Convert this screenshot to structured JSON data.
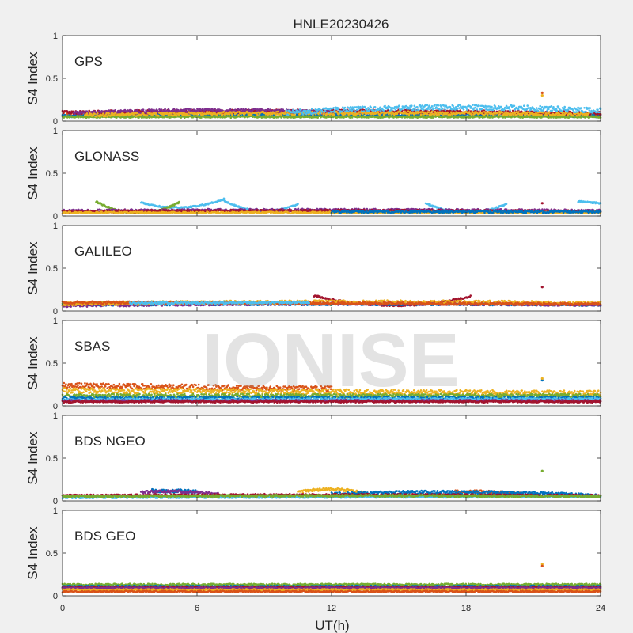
{
  "chart_data": {
    "type": "scatter",
    "title": "HNLE20230426",
    "xlabel": "UT(h)",
    "ylabel": "S4 Index",
    "xlim": [
      0,
      24
    ],
    "ylim": [
      0,
      1
    ],
    "x_ticks": [
      "0",
      "6",
      "12",
      "18",
      "24"
    ],
    "y_ticks": [
      "0",
      "0.5",
      "1"
    ],
    "watermark": "IONISE",
    "series_colors": [
      "#0072BD",
      "#D95319",
      "#EDB120",
      "#7E2F8E",
      "#77AC30",
      "#4DBEEE",
      "#A2142F"
    ],
    "panels": [
      {
        "label": "GPS",
        "tracks": [
          {
            "color": "#D95319",
            "start": 0.0,
            "end": 24.0,
            "y0": 0.08,
            "y1": 0.07,
            "bump": 0.02,
            "spread": 0.02
          },
          {
            "color": "#0072BD",
            "start": 0.0,
            "end": 24.0,
            "y0": 0.06,
            "y1": 0.06,
            "bump": 0.01,
            "spread": 0.015
          },
          {
            "color": "#77AC30",
            "start": 0.0,
            "end": 24.0,
            "y0": 0.05,
            "y1": 0.05,
            "bump": 0.0,
            "spread": 0.01
          },
          {
            "color": "#A2142F",
            "start": 0.0,
            "end": 24.0,
            "y0": 0.1,
            "y1": 0.09,
            "bump": 0.02,
            "spread": 0.02
          },
          {
            "color": "#7E2F8E",
            "start": 0.5,
            "end": 12.0,
            "y0": 0.09,
            "y1": 0.1,
            "bump": 0.03,
            "spread": 0.02
          },
          {
            "color": "#EDB120",
            "start": 1.0,
            "end": 23.5,
            "y0": 0.07,
            "y1": 0.08,
            "bump": 0.02,
            "spread": 0.02
          },
          {
            "color": "#4DBEEE",
            "start": 10.0,
            "end": 24.0,
            "y0": 0.1,
            "y1": 0.12,
            "bump": 0.05,
            "spread": 0.03
          }
        ],
        "outliers": [
          {
            "x": 21.4,
            "y": 0.3,
            "color": "#EDB120"
          },
          {
            "x": 21.4,
            "y": 0.33,
            "color": "#D95319"
          }
        ]
      },
      {
        "label": "GLONASS",
        "tracks": [
          {
            "color": "#4DBEEE",
            "start": 3.5,
            "end": 7.2,
            "y0": 0.16,
            "y1": 0.2,
            "bump": -0.08,
            "spread": 0.008
          },
          {
            "color": "#4DBEEE",
            "start": 7.2,
            "end": 10.5,
            "y0": 0.18,
            "y1": 0.14,
            "bump": -0.1,
            "spread": 0.008
          },
          {
            "color": "#4DBEEE",
            "start": 16.2,
            "end": 19.8,
            "y0": 0.15,
            "y1": 0.14,
            "bump": -0.1,
            "spread": 0.008
          },
          {
            "color": "#77AC30",
            "start": 1.5,
            "end": 5.2,
            "y0": 0.17,
            "y1": 0.16,
            "bump": -0.13,
            "spread": 0.008
          },
          {
            "color": "#7E2F8E",
            "start": 0.0,
            "end": 24.0,
            "y0": 0.06,
            "y1": 0.06,
            "bump": 0.01,
            "spread": 0.015
          },
          {
            "color": "#A2142F",
            "start": 0.0,
            "end": 24.0,
            "y0": 0.05,
            "y1": 0.05,
            "bump": 0.01,
            "spread": 0.015
          },
          {
            "color": "#EDB120",
            "start": 0.0,
            "end": 24.0,
            "y0": 0.04,
            "y1": 0.04,
            "bump": 0.0,
            "spread": 0.01
          },
          {
            "color": "#0072BD",
            "start": 12.0,
            "end": 24.0,
            "y0": 0.05,
            "y1": 0.05,
            "bump": 0.0,
            "spread": 0.012
          },
          {
            "color": "#4DBEEE",
            "start": 23.0,
            "end": 24.0,
            "y0": 0.17,
            "y1": 0.15,
            "bump": 0.0,
            "spread": 0.008
          }
        ],
        "outliers": [
          {
            "x": 21.4,
            "y": 0.15,
            "color": "#A2142F"
          }
        ]
      },
      {
        "label": "GALILEO",
        "tracks": [
          {
            "color": "#A2142F",
            "start": 11.2,
            "end": 18.2,
            "y0": 0.18,
            "y1": 0.17,
            "bump": -0.11,
            "spread": 0.01
          },
          {
            "color": "#77AC30",
            "start": 0.0,
            "end": 12.0,
            "y0": 0.08,
            "y1": 0.08,
            "bump": 0.02,
            "spread": 0.015
          },
          {
            "color": "#0072BD",
            "start": 0.0,
            "end": 24.0,
            "y0": 0.07,
            "y1": 0.07,
            "bump": 0.01,
            "spread": 0.012
          },
          {
            "color": "#7E2F8E",
            "start": 0.0,
            "end": 24.0,
            "y0": 0.06,
            "y1": 0.07,
            "bump": 0.02,
            "spread": 0.015
          },
          {
            "color": "#EDB120",
            "start": 0.0,
            "end": 24.0,
            "y0": 0.08,
            "y1": 0.09,
            "bump": 0.02,
            "spread": 0.02
          },
          {
            "color": "#D95319",
            "start": 0.0,
            "end": 24.0,
            "y0": 0.1,
            "y1": 0.08,
            "bump": 0.0,
            "spread": 0.015
          },
          {
            "color": "#4DBEEE",
            "start": 3.0,
            "end": 11.0,
            "y0": 0.09,
            "y1": 0.1,
            "bump": 0.0,
            "spread": 0.012
          }
        ],
        "outliers": [
          {
            "x": 21.4,
            "y": 0.28,
            "color": "#A2142F"
          }
        ]
      },
      {
        "label": "SBAS",
        "tracks": [
          {
            "color": "#D95319",
            "start": 0.0,
            "end": 12.0,
            "y0": 0.24,
            "y1": 0.2,
            "bump": 0.0,
            "spread": 0.03
          },
          {
            "color": "#EDB120",
            "start": 0.0,
            "end": 24.0,
            "y0": 0.18,
            "y1": 0.15,
            "bump": 0.0,
            "spread": 0.03
          },
          {
            "color": "#77AC30",
            "start": 0.0,
            "end": 24.0,
            "y0": 0.12,
            "y1": 0.12,
            "bump": 0.0,
            "spread": 0.02
          },
          {
            "color": "#0072BD",
            "start": 0.0,
            "end": 24.0,
            "y0": 0.09,
            "y1": 0.09,
            "bump": 0.0,
            "spread": 0.02
          },
          {
            "color": "#4DBEEE",
            "start": 0.0,
            "end": 24.0,
            "y0": 0.07,
            "y1": 0.08,
            "bump": 0.0,
            "spread": 0.015
          },
          {
            "color": "#7E2F8E",
            "start": 0.0,
            "end": 24.0,
            "y0": 0.06,
            "y1": 0.06,
            "bump": 0.0,
            "spread": 0.012
          },
          {
            "color": "#A2142F",
            "start": 0.0,
            "end": 24.0,
            "y0": 0.05,
            "y1": 0.05,
            "bump": 0.0,
            "spread": 0.01
          }
        ],
        "outliers": [
          {
            "x": 21.4,
            "y": 0.3,
            "color": "#0072BD"
          },
          {
            "x": 21.4,
            "y": 0.32,
            "color": "#EDB120"
          }
        ]
      },
      {
        "label": "BDS NGEO",
        "tracks": [
          {
            "color": "#0072BD",
            "start": 4.0,
            "end": 6.0,
            "y0": 0.12,
            "y1": 0.11,
            "bump": 0.0,
            "spread": 0.02
          },
          {
            "color": "#7E2F8E",
            "start": 3.5,
            "end": 7.0,
            "y0": 0.1,
            "y1": 0.08,
            "bump": 0.02,
            "spread": 0.015
          },
          {
            "color": "#EDB120",
            "start": 10.5,
            "end": 13.5,
            "y0": 0.1,
            "y1": 0.09,
            "bump": 0.04,
            "spread": 0.015
          },
          {
            "color": "#D95319",
            "start": 17.5,
            "end": 20.5,
            "y0": 0.11,
            "y1": 0.08,
            "bump": 0.01,
            "spread": 0.015
          },
          {
            "color": "#0072BD",
            "start": 12.0,
            "end": 24.0,
            "y0": 0.08,
            "y1": 0.06,
            "bump": 0.03,
            "spread": 0.02
          },
          {
            "color": "#A2142F",
            "start": 0.0,
            "end": 24.0,
            "y0": 0.06,
            "y1": 0.06,
            "bump": 0.01,
            "spread": 0.012
          },
          {
            "color": "#4DBEEE",
            "start": 0.0,
            "end": 24.0,
            "y0": 0.04,
            "y1": 0.05,
            "bump": 0.0,
            "spread": 0.01
          },
          {
            "color": "#77AC30",
            "start": 0.0,
            "end": 24.0,
            "y0": 0.05,
            "y1": 0.05,
            "bump": 0.01,
            "spread": 0.012
          }
        ],
        "outliers": [
          {
            "x": 21.4,
            "y": 0.35,
            "color": "#77AC30"
          }
        ]
      },
      {
        "label": "BDS GEO",
        "tracks": [
          {
            "color": "#77AC30",
            "start": 0.0,
            "end": 24.0,
            "y0": 0.13,
            "y1": 0.13,
            "bump": 0.0,
            "spread": 0.012
          },
          {
            "color": "#0072BD",
            "start": 0.0,
            "end": 24.0,
            "y0": 0.11,
            "y1": 0.11,
            "bump": 0.0,
            "spread": 0.01
          },
          {
            "color": "#A2142F",
            "start": 0.0,
            "end": 24.0,
            "y0": 0.1,
            "y1": 0.1,
            "bump": 0.0,
            "spread": 0.01
          },
          {
            "color": "#7E2F8E",
            "start": 0.0,
            "end": 24.0,
            "y0": 0.09,
            "y1": 0.09,
            "bump": 0.0,
            "spread": 0.01
          },
          {
            "color": "#EDB120",
            "start": 0.0,
            "end": 24.0,
            "y0": 0.07,
            "y1": 0.07,
            "bump": 0.0,
            "spread": 0.01
          },
          {
            "color": "#D95319",
            "start": 0.0,
            "end": 24.0,
            "y0": 0.05,
            "y1": 0.05,
            "bump": 0.0,
            "spread": 0.01
          }
        ],
        "outliers": [
          {
            "x": 21.4,
            "y": 0.37,
            "color": "#EDB120"
          },
          {
            "x": 21.4,
            "y": 0.35,
            "color": "#D95319"
          }
        ]
      }
    ]
  }
}
